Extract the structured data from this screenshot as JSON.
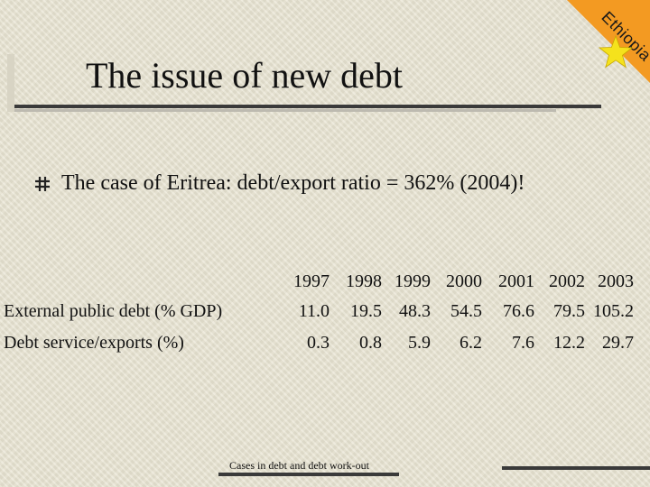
{
  "corner": {
    "label": "Ethiopia",
    "colors": {
      "triangle": "#f39a22",
      "star": "#f5e21c"
    },
    "icon": "star-icon"
  },
  "title": "The issue of new debt",
  "bullet": {
    "icon": "hash-bullet-icon",
    "text": "The case of Eritrea: debt/export ratio = 362% (2004)!"
  },
  "table": {
    "years": [
      "1997",
      "1998",
      "1999",
      "2000",
      "2001",
      "2002",
      "2003"
    ],
    "rows": [
      {
        "label": "External public debt (% GDP)",
        "values": [
          "11.0",
          "19.5",
          "48.3",
          "54.5",
          "76.6",
          "79.5",
          "105.2"
        ]
      },
      {
        "label": "Debt service/exports (%)",
        "values": [
          "0.3",
          "0.8",
          "5.9",
          "6.2",
          "7.6",
          "12.2",
          "29.7"
        ]
      }
    ]
  },
  "footer": "Cases in debt and debt work-out"
}
